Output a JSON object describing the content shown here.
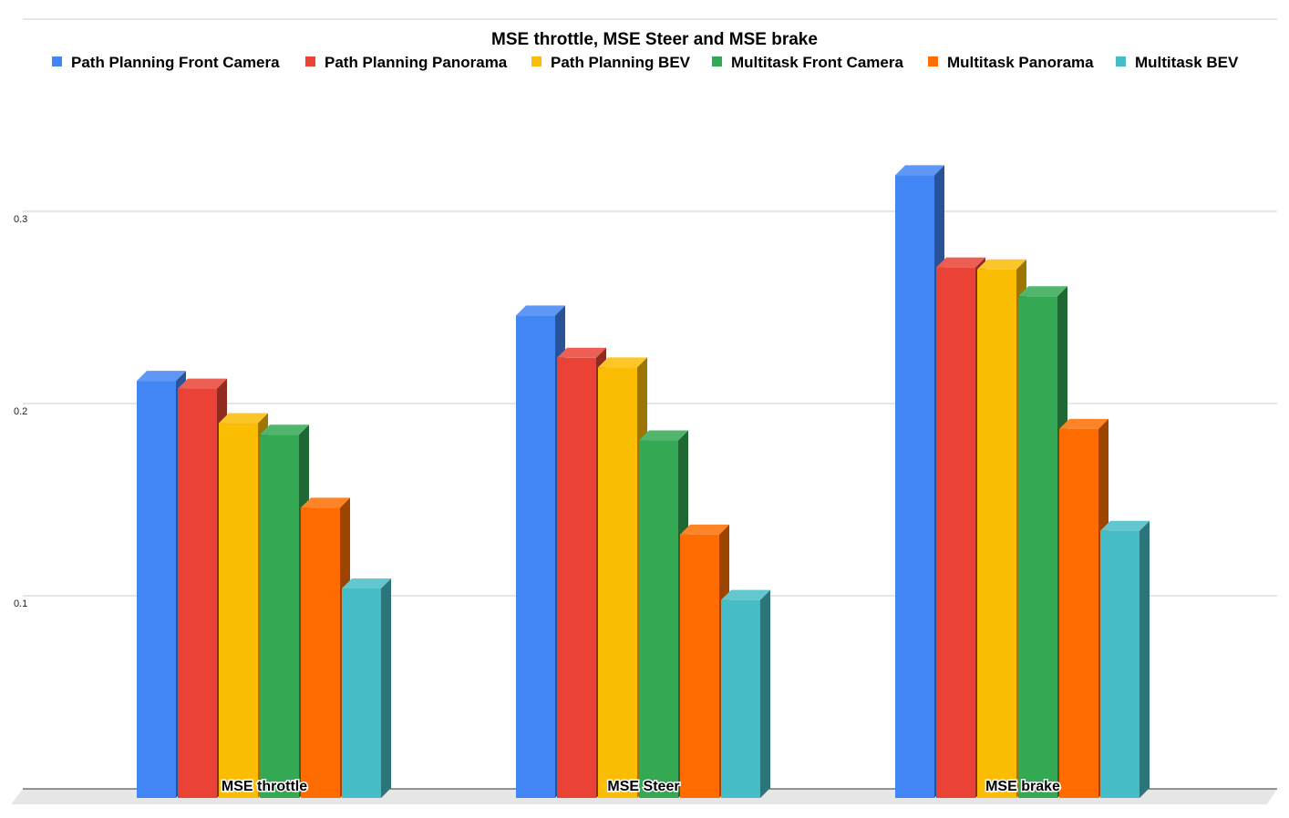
{
  "chart_data": {
    "type": "bar",
    "title": "MSE throttle, MSE Steer and MSE brake",
    "xlabel": "",
    "ylabel": "",
    "categories": [
      "MSE throttle",
      "MSE Steer",
      "MSE brake"
    ],
    "ylim": [
      0,
      0.3
    ],
    "yticks": [
      "0.1",
      "0.2",
      "0.3"
    ],
    "grid": true,
    "legend_position": "top",
    "series": [
      {
        "name": "Path Planning Front Camera",
        "color": "#4285F4",
        "values": [
          0.217,
          0.251,
          0.324
        ]
      },
      {
        "name": "Path Planning Panorama",
        "color": "#EA4335",
        "values": [
          0.213,
          0.229,
          0.276
        ]
      },
      {
        "name": "Path Planning BEV",
        "color": "#FBBC04",
        "values": [
          0.195,
          0.224,
          0.275
        ]
      },
      {
        "name": "Multitask Front Camera",
        "color": "#34A853",
        "values": [
          0.189,
          0.186,
          0.261
        ]
      },
      {
        "name": "Multitask Panorama",
        "color": "#FF6D01",
        "values": [
          0.151,
          0.137,
          0.192
        ]
      },
      {
        "name": "Multitask BEV",
        "color": "#46BDC6",
        "values": [
          0.109,
          0.103,
          0.139
        ]
      }
    ]
  }
}
